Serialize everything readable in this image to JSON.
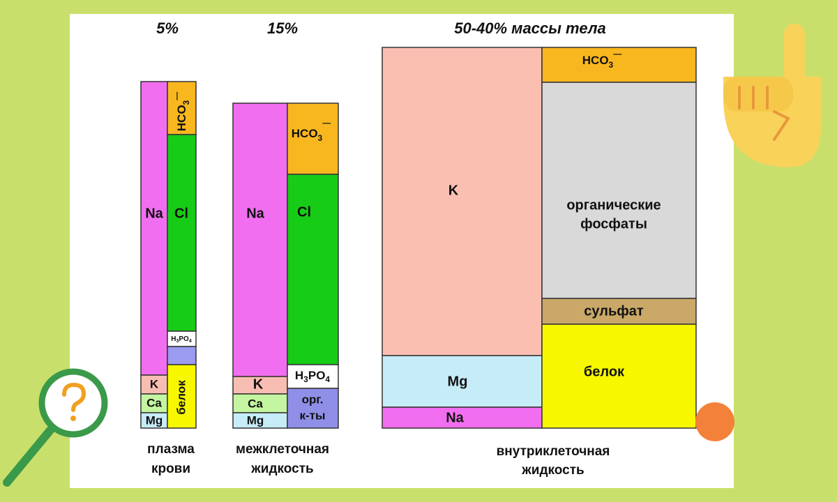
{
  "headers": [
    "5%",
    "15%",
    "50-40% массы тела"
  ],
  "columns": [
    {
      "caption": [
        "плазма",
        "крови"
      ],
      "left": [
        "Na",
        "K",
        "Ca",
        "Mg"
      ],
      "right": {
        "hco3": [
          "HCO",
          "3",
          "—"
        ],
        "cl": "Cl",
        "h3po4": [
          "H",
          "3",
          "PO",
          "4"
        ],
        "protein": "белок"
      }
    },
    {
      "caption": [
        "межклеточная",
        "жидкость"
      ],
      "left": [
        "Na",
        "K",
        "Ca",
        "Mg"
      ],
      "right": {
        "hco3": [
          "HCO",
          "3",
          "—"
        ],
        "cl": "Cl",
        "h3po4": [
          "H",
          "3",
          "PO",
          "4"
        ],
        "organic_acids": [
          "орг.",
          "к-ты"
        ]
      }
    },
    {
      "caption": [
        "внутриклеточная",
        "жидкость"
      ],
      "left": [
        "K",
        "Mg",
        "Na"
      ],
      "right": {
        "hco3": [
          "HCO",
          "3",
          "—"
        ],
        "organic_phosphates": [
          "органические",
          "фосфаты"
        ],
        "sulfate": "сульфат",
        "protein": "белок"
      }
    }
  ]
}
